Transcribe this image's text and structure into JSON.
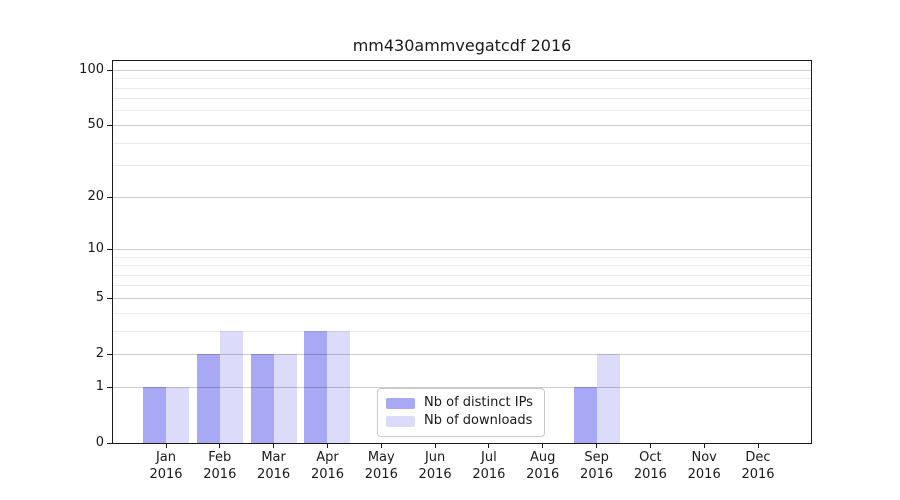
{
  "title": "mm430ammvegatcdf 2016",
  "legend": {
    "items": [
      {
        "label": "Nb of distinct IPs",
        "color": "#a8a8f5"
      },
      {
        "label": "Nb of downloads",
        "color": "#dcdcfa"
      }
    ]
  },
  "chart_data": {
    "type": "bar",
    "title": "mm430ammvegatcdf 2016",
    "categories": [
      "Jan",
      "Feb",
      "Mar",
      "Apr",
      "May",
      "Jun",
      "Jul",
      "Aug",
      "Sep",
      "Oct",
      "Nov",
      "Dec"
    ],
    "category_year": "2016",
    "series": [
      {
        "name": "Nb of distinct IPs",
        "color": "#a8a8f5",
        "values": [
          1,
          2,
          2,
          3,
          0,
          0,
          0,
          0,
          1,
          0,
          0,
          0
        ]
      },
      {
        "name": "Nb of downloads",
        "color": "#dcdcfa",
        "values": [
          1,
          3,
          2,
          3,
          0,
          0,
          0,
          0,
          2,
          0,
          0,
          0
        ]
      }
    ],
    "yscale": "log1p",
    "yticks": [
      0,
      1,
      2,
      5,
      10,
      20,
      50,
      100
    ],
    "minor_gridlines": [
      3,
      4,
      6,
      7,
      8,
      9,
      30,
      40,
      60,
      70,
      80,
      90
    ],
    "ylim": [
      0,
      113
    ],
    "grid": "horizontal-major-and-minor",
    "legend_position": "inside-bottom-center",
    "bar_colors": {
      "distinct_ips": "#a8a8f5",
      "downloads": "#dcdcfa"
    }
  }
}
